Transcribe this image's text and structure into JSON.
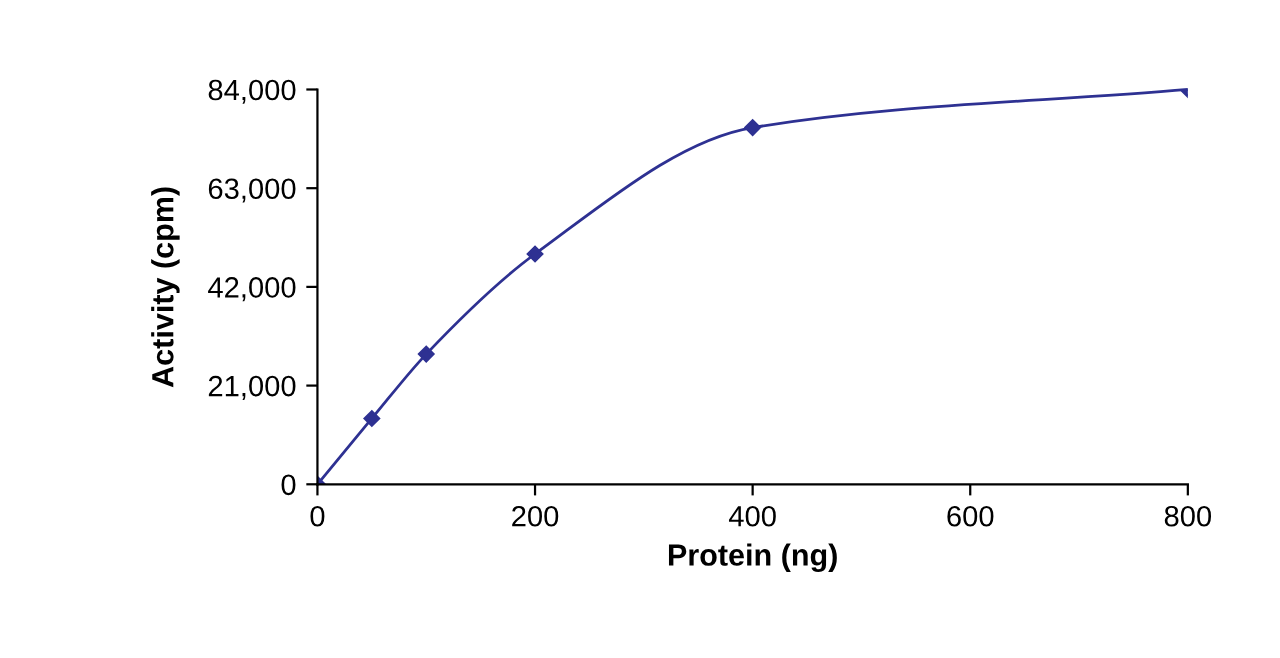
{
  "chart_data": {
    "type": "line",
    "xlabel": "Protein (ng)",
    "ylabel": "Activity (cpm)",
    "x": [
      0,
      50,
      100,
      200,
      400,
      800
    ],
    "series": [
      {
        "color": "#2e3192",
        "values": [
          0,
          14000,
          27700,
          49000,
          75900,
          84000
        ]
      }
    ],
    "xlim": [
      0,
      800
    ],
    "xticks": [
      0,
      200,
      400,
      600,
      800
    ],
    "ylim": [
      0,
      84000
    ],
    "yticks": [
      0,
      {
        "value": 21000,
        "label": "21,000"
      },
      {
        "value": 42000,
        "label": "42,000"
      },
      {
        "value": 63000,
        "label": "63,000"
      },
      {
        "value": 84000,
        "label": "84,000"
      }
    ],
    "grid": false,
    "marker": "diamond",
    "line_style": "solid"
  }
}
